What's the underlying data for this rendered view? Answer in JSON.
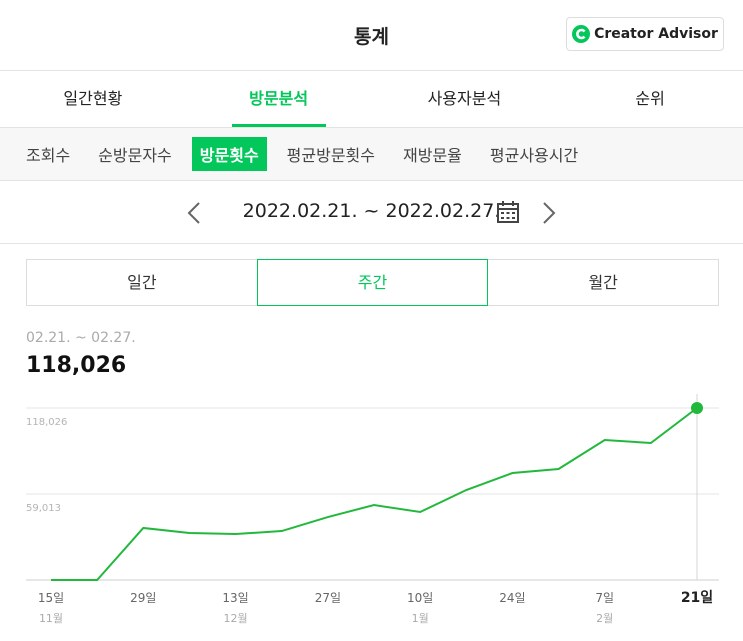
{
  "header": {
    "title": "통계",
    "button": "Creator Advisor"
  },
  "tabs": {
    "items": [
      "일간현황",
      "방문분석",
      "사용자분석",
      "순위"
    ],
    "active": 1
  },
  "subtabs": {
    "items": [
      "조회수",
      "순방문자수",
      "방문횟수",
      "평균방문횟수",
      "재방문율",
      "평균사용시간"
    ],
    "active": 2
  },
  "date_range": "2022.02.21. ~ 2022.02.27.",
  "period_tabs": {
    "items": [
      "일간",
      "주간",
      "월간"
    ],
    "active": 1
  },
  "chart_data": {
    "type": "line",
    "period": "02.21. ~ 02.27.",
    "total": "118,026",
    "categories": [
      "15일",
      null,
      "29일",
      null,
      "13일",
      null,
      "27일",
      null,
      "10일",
      null,
      "24일",
      null,
      "7일",
      null,
      "21일"
    ],
    "months": [
      "11월",
      null,
      null,
      null,
      "12월",
      null,
      null,
      null,
      "1월",
      null,
      null,
      null,
      "2월",
      null,
      null
    ],
    "series": [
      {
        "name": "방문횟수",
        "color": "#22b83c",
        "values": [
          0,
          0,
          35700,
          32250,
          31550,
          33600,
          43200,
          51450,
          46650,
          61750,
          73400,
          76150,
          96050,
          94000,
          118026
        ]
      }
    ],
    "ylim": [
      0,
      118026
    ],
    "yticks": [
      {
        "value": 59013,
        "label": "59,013"
      },
      {
        "value": 118026,
        "label": "118,026"
      }
    ],
    "grid": true
  }
}
